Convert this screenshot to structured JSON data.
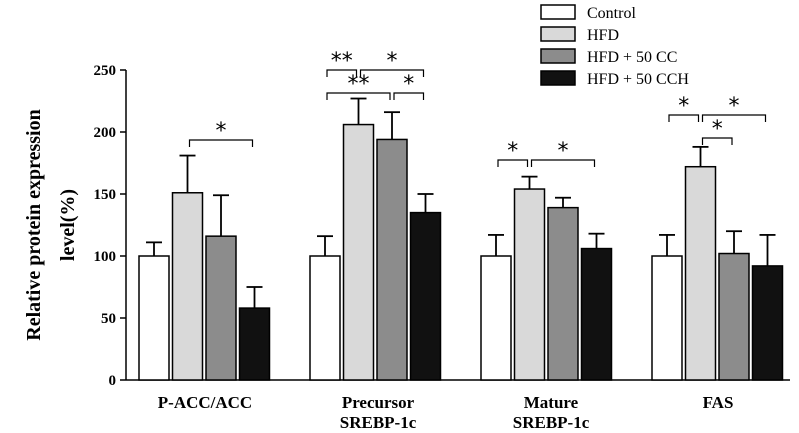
{
  "chart_data": {
    "type": "bar",
    "title": "",
    "xlabel": "",
    "ylabel_lines": [
      "Relative protein expression",
      "level(%)"
    ],
    "ylim": [
      0,
      250
    ],
    "yticks": [
      0,
      50,
      100,
      150,
      200,
      250
    ],
    "categories": [
      [
        "P-ACC/ACC"
      ],
      [
        "Precursor",
        "SREBP-1c"
      ],
      [
        "Mature",
        "SREBP-1c"
      ],
      [
        "FAS"
      ]
    ],
    "legend_position": "top-right",
    "series": [
      {
        "name": "Control",
        "color": "#ffffff",
        "values": [
          100,
          100,
          100,
          100
        ],
        "errors": [
          11,
          16,
          17,
          17
        ]
      },
      {
        "name": "HFD",
        "color": "#d9d9d9",
        "values": [
          151,
          206,
          154,
          172
        ],
        "errors": [
          30,
          21,
          10,
          16
        ]
      },
      {
        "name": "HFD + 50 CC",
        "color": "#8c8c8c",
        "values": [
          116,
          194,
          139,
          102
        ],
        "errors": [
          33,
          22,
          8,
          18
        ]
      },
      {
        "name": "HFD + 50 CCH",
        "color": "#111111",
        "values": [
          58,
          135,
          106,
          92
        ],
        "errors": [
          17,
          15,
          12,
          25
        ]
      }
    ],
    "significance": [
      {
        "category": 0,
        "from": 1,
        "to": 3,
        "level": 1,
        "label": "*"
      },
      {
        "category": 1,
        "from": 0,
        "to": 1,
        "level": 2,
        "label": "**"
      },
      {
        "category": 1,
        "from": 1,
        "to": 3,
        "level": 2,
        "label": "*"
      },
      {
        "category": 1,
        "from": 0,
        "to": 2,
        "level": 1,
        "label": "**"
      },
      {
        "category": 1,
        "from": 2,
        "to": 3,
        "level": 1,
        "label": "*"
      },
      {
        "category": 2,
        "from": 0,
        "to": 1,
        "level": 1,
        "label": "*"
      },
      {
        "category": 2,
        "from": 1,
        "to": 3,
        "level": 1,
        "label": "*"
      },
      {
        "category": 3,
        "from": 0,
        "to": 1,
        "level": 2,
        "label": "*"
      },
      {
        "category": 3,
        "from": 1,
        "to": 3,
        "level": 2,
        "label": "*"
      },
      {
        "category": 3,
        "from": 1,
        "to": 2,
        "level": 1,
        "label": "*"
      }
    ]
  }
}
